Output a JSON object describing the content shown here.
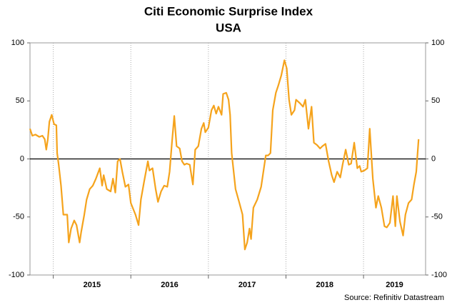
{
  "chart_data": {
    "type": "line",
    "title": "Citi Economic Surprise Index",
    "subtitle": "USA",
    "annotation": "Source: Refinitiv Datastream",
    "x": [
      2014.7,
      2014.73,
      2014.77,
      2014.82,
      2014.86,
      2014.89,
      2014.91,
      2014.93,
      2014.95,
      2014.98,
      2015.01,
      2015.04,
      2015.05,
      2015.07,
      2015.1,
      2015.13,
      2015.18,
      2015.2,
      2015.23,
      2015.27,
      2015.3,
      2015.34,
      2015.36,
      2015.4,
      2015.43,
      2015.47,
      2015.51,
      2015.55,
      2015.6,
      2015.63,
      2015.65,
      2015.69,
      2015.74,
      2015.77,
      2015.8,
      2015.83,
      2015.86,
      2015.89,
      2015.93,
      2015.97,
      2016.0,
      2016.06,
      2016.1,
      2016.13,
      2016.17,
      2016.22,
      2016.24,
      2016.28,
      2016.32,
      2016.35,
      2016.39,
      2016.43,
      2016.47,
      2016.5,
      2016.53,
      2016.56,
      2016.59,
      2016.63,
      2016.66,
      2016.69,
      2016.72,
      2016.76,
      2016.8,
      2016.83,
      2016.87,
      2016.91,
      2016.94,
      2016.96,
      2017.0,
      2017.04,
      2017.07,
      2017.1,
      2017.13,
      2017.17,
      2017.19,
      2017.23,
      2017.26,
      2017.28,
      2017.3,
      2017.35,
      2017.4,
      2017.44,
      2017.47,
      2017.5,
      2017.53,
      2017.55,
      2017.58,
      2017.63,
      2017.68,
      2017.74,
      2017.77,
      2017.8,
      2017.83,
      2017.87,
      2017.9,
      2017.94,
      2017.98,
      2018.01,
      2018.04,
      2018.07,
      2018.11,
      2018.13,
      2018.18,
      2018.22,
      2018.25,
      2018.29,
      2018.33,
      2018.36,
      2018.4,
      2018.44,
      2018.47,
      2018.51,
      2018.55,
      2018.59,
      2018.62,
      2018.66,
      2018.7,
      2018.73,
      2018.77,
      2018.81,
      2018.84,
      2018.88,
      2018.92,
      2018.95,
      2018.97,
      2019.01,
      2019.05,
      2019.08,
      2019.12,
      2019.16,
      2019.19,
      2019.23,
      2019.27,
      2019.3,
      2019.34,
      2019.38,
      2019.41,
      2019.43,
      2019.47,
      2019.51,
      2019.54,
      2019.58,
      2019.62,
      2019.65,
      2019.68,
      2019.71
    ],
    "series": [
      {
        "name": "USA",
        "color": "#f5a31c",
        "values": [
          26,
          20,
          21,
          19,
          20,
          17,
          8,
          17,
          32,
          38,
          30,
          29,
          5,
          -5,
          -23,
          -48,
          -48,
          -72,
          -60,
          -53,
          -57,
          -72,
          -63,
          -48,
          -35,
          -26,
          -23,
          -17,
          -8,
          -23,
          -14,
          -26,
          -28,
          -17,
          -29,
          -2,
          0,
          -11,
          -24,
          -22,
          -38,
          -48,
          -57,
          -35,
          -20,
          -2,
          -10,
          -8,
          -26,
          -37,
          -28,
          -23,
          -24,
          -11,
          14,
          37,
          11,
          9,
          -2,
          -5,
          -4,
          -5,
          -22,
          8,
          11,
          26,
          31,
          23,
          27,
          42,
          46,
          39,
          45,
          38,
          56,
          57,
          51,
          38,
          5,
          -26,
          -38,
          -48,
          -78,
          -72,
          -60,
          -69,
          -42,
          -35,
          -24,
          3,
          3,
          5,
          42,
          57,
          63,
          72,
          85,
          78,
          51,
          38,
          42,
          51,
          48,
          45,
          51,
          26,
          45,
          14,
          12,
          9,
          11,
          13,
          -2,
          -14,
          -20,
          -11,
          -16,
          -5,
          8,
          -5,
          -4,
          14,
          -8,
          -6,
          -11,
          -10,
          -8,
          26,
          -17,
          -42,
          -32,
          -42,
          -58,
          -59,
          -55,
          -32,
          -58,
          -32,
          -54,
          -66,
          -48,
          -38,
          -35,
          -22,
          -11,
          17
        ]
      }
    ],
    "xlim": [
      2014.7,
      2019.8
    ],
    "xticks": [
      2015,
      2016,
      2017,
      2018,
      2019
    ],
    "ylim": [
      -100,
      100
    ],
    "yticks": [
      -100,
      -50,
      0,
      50,
      100
    ],
    "y2lim": [
      -100,
      100
    ],
    "y2ticks": [
      -100,
      -50,
      0,
      50,
      100
    ],
    "grid": "x"
  }
}
